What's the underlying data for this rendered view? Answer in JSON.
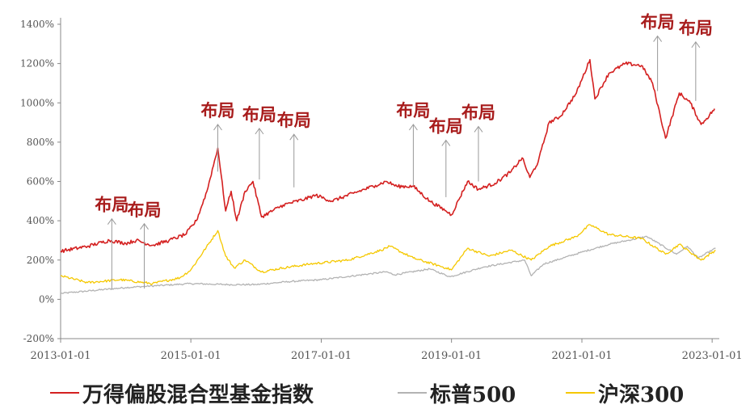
{
  "chart_data": {
    "type": "line",
    "title": "",
    "xlabel": "",
    "ylabel": "",
    "x_range": [
      "2013-01-01",
      "2023-02-01"
    ],
    "ylim": [
      -200,
      1400
    ],
    "y_ticks": [
      "-200%",
      "0%",
      "200%",
      "400%",
      "600%",
      "800%",
      "1000%",
      "1200%",
      "1400%"
    ],
    "x_ticks": [
      "2013-01-01",
      "2015-01-01",
      "2017-01-01",
      "2019-01-01",
      "2021-01-01",
      "2023-01-01"
    ],
    "grid": false,
    "legend_position": "bottom",
    "series": [
      {
        "name": "万得偏股混合型基金指数",
        "color": "#d42020",
        "points": [
          [
            "2013-01-01",
            245
          ],
          [
            "2013-06-01",
            270
          ],
          [
            "2013-10-01",
            300
          ],
          [
            "2014-01-01",
            285
          ],
          [
            "2014-03-01",
            300
          ],
          [
            "2014-06-01",
            275
          ],
          [
            "2014-09-01",
            300
          ],
          [
            "2014-12-01",
            330
          ],
          [
            "2015-02-01",
            400
          ],
          [
            "2015-04-01",
            550
          ],
          [
            "2015-06-01",
            770
          ],
          [
            "2015-07-15",
            450
          ],
          [
            "2015-08-15",
            550
          ],
          [
            "2015-09-15",
            400
          ],
          [
            "2015-11-01",
            550
          ],
          [
            "2015-12-15",
            600
          ],
          [
            "2016-02-01",
            420
          ],
          [
            "2016-06-01",
            480
          ],
          [
            "2016-10-01",
            510
          ],
          [
            "2016-12-01",
            530
          ],
          [
            "2017-03-01",
            500
          ],
          [
            "2017-07-01",
            540
          ],
          [
            "2017-11-01",
            580
          ],
          [
            "2018-01-01",
            600
          ],
          [
            "2018-03-01",
            575
          ],
          [
            "2018-06-01",
            575
          ],
          [
            "2018-09-01",
            500
          ],
          [
            "2018-12-01",
            450
          ],
          [
            "2019-01-01",
            430
          ],
          [
            "2019-04-01",
            600
          ],
          [
            "2019-06-01",
            560
          ],
          [
            "2019-09-01",
            590
          ],
          [
            "2019-12-01",
            650
          ],
          [
            "2020-02-01",
            720
          ],
          [
            "2020-03-15",
            620
          ],
          [
            "2020-05-01",
            700
          ],
          [
            "2020-07-01",
            900
          ],
          [
            "2020-09-01",
            930
          ],
          [
            "2020-12-01",
            1050
          ],
          [
            "2021-02-15",
            1220
          ],
          [
            "2021-03-15",
            1020
          ],
          [
            "2021-06-01",
            1150
          ],
          [
            "2021-09-01",
            1200
          ],
          [
            "2021-12-01",
            1190
          ],
          [
            "2022-02-01",
            1100
          ],
          [
            "2022-04-15",
            820
          ],
          [
            "2022-07-01",
            1050
          ],
          [
            "2022-09-01",
            1000
          ],
          [
            "2022-10-31",
            890
          ],
          [
            "2022-12-01",
            920
          ],
          [
            "2023-01-15",
            970
          ]
        ]
      },
      {
        "name": "标普500",
        "color": "#b3b3b3",
        "points": [
          [
            "2013-01-01",
            30
          ],
          [
            "2014-01-01",
            60
          ],
          [
            "2015-01-01",
            80
          ],
          [
            "2015-08-01",
            75
          ],
          [
            "2016-01-01",
            75
          ],
          [
            "2016-07-01",
            90
          ],
          [
            "2017-01-01",
            100
          ],
          [
            "2018-01-01",
            140
          ],
          [
            "2018-02-15",
            125
          ],
          [
            "2018-09-01",
            155
          ],
          [
            "2018-12-24",
            115
          ],
          [
            "2019-07-01",
            165
          ],
          [
            "2020-02-15",
            200
          ],
          [
            "2020-03-23",
            120
          ],
          [
            "2020-06-01",
            180
          ],
          [
            "2020-12-31",
            240
          ],
          [
            "2021-06-01",
            280
          ],
          [
            "2021-12-31",
            320
          ],
          [
            "2022-06-15",
            230
          ],
          [
            "2022-08-15",
            270
          ],
          [
            "2022-10-15",
            210
          ],
          [
            "2023-01-20",
            260
          ]
        ]
      },
      {
        "name": "沪深300",
        "color": "#f5c800",
        "points": [
          [
            "2013-01-01",
            120
          ],
          [
            "2013-06-01",
            85
          ],
          [
            "2013-12-01",
            100
          ],
          [
            "2014-06-01",
            80
          ],
          [
            "2014-11-01",
            110
          ],
          [
            "2015-01-01",
            150
          ],
          [
            "2015-06-01",
            350
          ],
          [
            "2015-07-15",
            220
          ],
          [
            "2015-09-01",
            160
          ],
          [
            "2015-11-01",
            200
          ],
          [
            "2016-02-01",
            140
          ],
          [
            "2016-06-01",
            160
          ],
          [
            "2016-11-01",
            180
          ],
          [
            "2017-06-01",
            200
          ],
          [
            "2017-12-01",
            250
          ],
          [
            "2018-01-20",
            270
          ],
          [
            "2018-06-01",
            210
          ],
          [
            "2018-12-01",
            160
          ],
          [
            "2019-01-01",
            150
          ],
          [
            "2019-04-01",
            260
          ],
          [
            "2019-08-01",
            220
          ],
          [
            "2019-12-01",
            250
          ],
          [
            "2020-03-23",
            200
          ],
          [
            "2020-07-01",
            270
          ],
          [
            "2020-12-01",
            320
          ],
          [
            "2021-02-15",
            380
          ],
          [
            "2021-06-01",
            330
          ],
          [
            "2021-12-01",
            310
          ],
          [
            "2022-04-15",
            230
          ],
          [
            "2022-07-01",
            280
          ],
          [
            "2022-10-31",
            200
          ],
          [
            "2023-01-20",
            250
          ]
        ]
      }
    ],
    "annotations": [
      {
        "text": "布局",
        "date": "2013-10-15",
        "arrow_from": 50,
        "arrow_to": 410
      },
      {
        "text": "布局",
        "date": "2014-04-15",
        "arrow_from": 55,
        "arrow_to": 385
      },
      {
        "text": "布局",
        "date": "2015-06-01",
        "arrow_from": 650,
        "arrow_to": 890
      },
      {
        "text": "布局",
        "date": "2016-01-20",
        "arrow_from": 610,
        "arrow_to": 870
      },
      {
        "text": "布局",
        "date": "2016-08-01",
        "arrow_from": 570,
        "arrow_to": 840
      },
      {
        "text": "布局",
        "date": "2018-06-01",
        "arrow_from": 580,
        "arrow_to": 890
      },
      {
        "text": "布局",
        "date": "2018-12-01",
        "arrow_from": 520,
        "arrow_to": 810
      },
      {
        "text": "布局",
        "date": "2019-06-01",
        "arrow_from": 600,
        "arrow_to": 880
      },
      {
        "text": "布局",
        "date": "2022-03-01",
        "arrow_from": 1060,
        "arrow_to": 1340
      },
      {
        "text": "布局",
        "date": "2022-10-01",
        "arrow_from": 1010,
        "arrow_to": 1310
      }
    ]
  }
}
